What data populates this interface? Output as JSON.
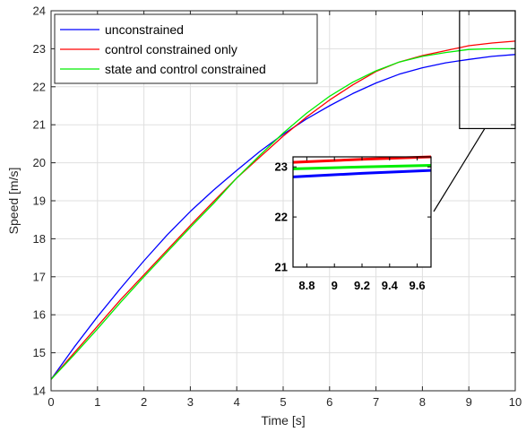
{
  "chart_data": [
    {
      "type": "line",
      "xlabel": "Time [s]",
      "ylabel": "Speed [m/s]",
      "xlim": [
        0,
        10
      ],
      "ylim": [
        14,
        24
      ],
      "xticks": [
        0,
        1,
        2,
        3,
        4,
        5,
        6,
        7,
        8,
        9,
        10
      ],
      "yticks": [
        14,
        15,
        16,
        17,
        18,
        19,
        20,
        21,
        22,
        23,
        24
      ],
      "grid": true,
      "legend_position": "top-left",
      "x": [
        0,
        0.5,
        1,
        1.5,
        2,
        2.5,
        3,
        3.5,
        4,
        4.5,
        5,
        5.5,
        6,
        6.5,
        7,
        7.5,
        8,
        8.5,
        9,
        9.5,
        10
      ],
      "series": [
        {
          "name": "unconstrained",
          "color": "#0000ff",
          "values": [
            14.3,
            15.15,
            15.95,
            16.7,
            17.42,
            18.1,
            18.72,
            19.28,
            19.8,
            20.3,
            20.75,
            21.15,
            21.5,
            21.82,
            22.1,
            22.33,
            22.5,
            22.63,
            22.72,
            22.8,
            22.85
          ]
        },
        {
          "name": "control constrained only",
          "color": "#ff0000",
          "values": [
            14.3,
            15.0,
            15.7,
            16.4,
            17.05,
            17.7,
            18.35,
            18.98,
            19.6,
            20.15,
            20.7,
            21.2,
            21.65,
            22.05,
            22.4,
            22.65,
            22.82,
            22.95,
            23.08,
            23.15,
            23.2
          ]
        },
        {
          "name": "state and control constrained",
          "color": "#00ee00",
          "values": [
            14.3,
            14.95,
            15.63,
            16.33,
            17.0,
            17.65,
            18.3,
            18.93,
            19.6,
            20.2,
            20.78,
            21.3,
            21.75,
            22.12,
            22.42,
            22.65,
            22.8,
            22.9,
            22.98,
            23.0,
            23.0
          ]
        }
      ]
    },
    {
      "type": "line",
      "role": "inset",
      "xlim": [
        8.7,
        9.7
      ],
      "ylim": [
        21,
        23.2
      ],
      "xticks": [
        8.8,
        9,
        9.2,
        9.4,
        9.6
      ],
      "xtick_labels": [
        "8.8",
        "9",
        "9.2",
        "9.4",
        "9.6"
      ],
      "yticks": [
        21,
        22,
        23
      ],
      "grid": false,
      "zoom_region": {
        "x": [
          8.8,
          10
        ],
        "y": [
          20.9,
          24
        ]
      },
      "x": [
        8.7,
        9.2,
        9.7
      ],
      "series": [
        {
          "name": "unconstrained",
          "color": "#0000ff",
          "values": [
            22.8,
            22.87,
            22.93
          ]
        },
        {
          "name": "control constrained only",
          "color": "#ff0000",
          "values": [
            23.09,
            23.15,
            23.2
          ]
        },
        {
          "name": "state and control constrained",
          "color": "#00ee00",
          "values": [
            22.96,
            23.0,
            23.03
          ]
        }
      ]
    }
  ]
}
